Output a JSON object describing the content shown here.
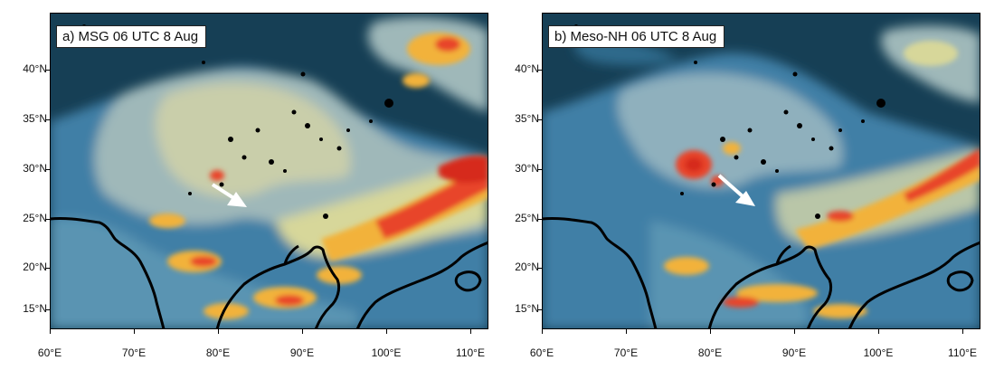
{
  "figure": {
    "panels": [
      {
        "id": "a",
        "label": "a) MSG  06 UTC 8 Aug",
        "lat_ticks": [
          "40°N",
          "35°N",
          "30°N",
          "25°N",
          "20°N",
          "15°N"
        ],
        "lon_ticks": [
          "60°E",
          "70°E",
          "80°E",
          "90°E",
          "100°E",
          "110°E"
        ],
        "variant": "observed"
      },
      {
        "id": "b",
        "label": "b) Meso-NH  06 UTC 8 Aug",
        "lat_ticks": [
          "40°N",
          "35°N",
          "30°N",
          "25°N",
          "20°N",
          "15°N"
        ],
        "lon_ticks": [
          "60°E",
          "70°E",
          "80°E",
          "90°E",
          "100°E",
          "110°E"
        ],
        "variant": "simulated"
      }
    ],
    "map_extent": {
      "lon_min": 60,
      "lon_max": 112,
      "lat_min": 13,
      "lat_max": 45
    },
    "palette": {
      "clear_sky": "#163f55",
      "low_cloud": "#3f7fa6",
      "mid_cloud": "#9fb8b9",
      "high_cloud": "#d7d79a",
      "cold_top": "#f2b23a",
      "very_cold": "#e8452a",
      "coast": "#000000",
      "arrow": "#ffffff"
    }
  }
}
